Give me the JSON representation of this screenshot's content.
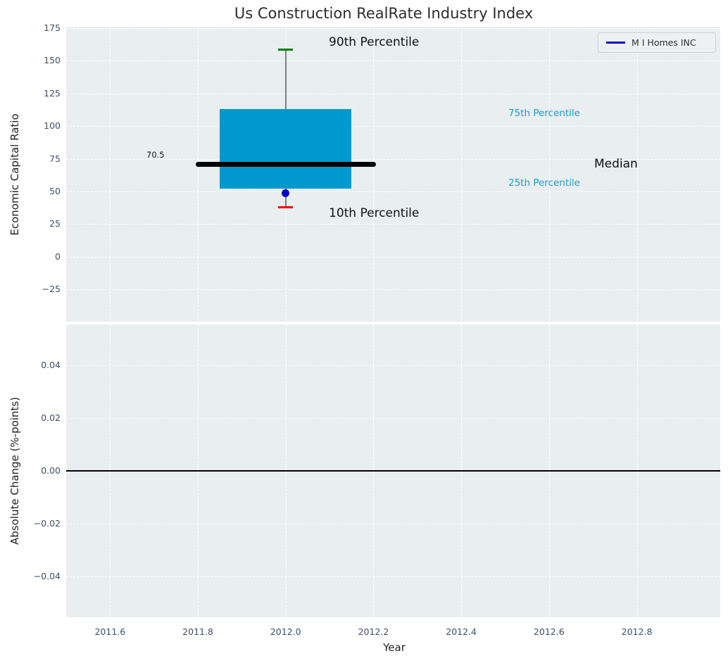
{
  "figure": {
    "title": "Us Construction RealRate Industry Index",
    "background": "#ffffff",
    "axes_background": "#e9eef0",
    "grid_color": "#ffffff",
    "tick_color": "#3e4f66"
  },
  "legend": {
    "label": "M I Homes INC",
    "line_color": "#0000cd"
  },
  "top_plot": {
    "ylabel": "Economic Capital Ratio",
    "annotations": {
      "p90": "90th Percentile",
      "p75": "75th Percentile",
      "median": "Median",
      "median_value_label": "70.5",
      "p25": "25th Percentile",
      "p10": "10th Percentile"
    }
  },
  "bottom_plot": {
    "ylabel": "Absolute Change (%-points)",
    "xlabel": "Year"
  },
  "chart_data": [
    {
      "type": "box",
      "title": "Us Construction RealRate Industry Index",
      "ylabel": "Economic Capital Ratio",
      "x": 2012.0,
      "box": {
        "p10": 38,
        "p25": 52,
        "median": 70.5,
        "p75": 113,
        "p90": 158.5
      },
      "box_x_range": [
        2011.85,
        2012.15
      ],
      "median_x_range": [
        2011.795,
        2012.205
      ],
      "cap_half_width": 0.017,
      "median_label": "70.5",
      "company_point": {
        "name": "M I Homes INC",
        "x": 2012.0,
        "y": 48.5,
        "color": "#0000cd"
      },
      "yticks": [
        175,
        150,
        125,
        100,
        75,
        50,
        25,
        0,
        -25
      ],
      "ytick_labels": [
        "175",
        "150",
        "125",
        "100",
        "75",
        "50",
        "25",
        "0",
        "−25"
      ],
      "ylim": [
        -49.6,
        176
      ],
      "grid": true,
      "legend": [
        "M I Homes INC"
      ],
      "legend_position": "upper right",
      "colors": {
        "box_fill": "#0099cd",
        "median_line": "#000000",
        "whisker": "#7f7f7f",
        "cap_top": "#008000",
        "cap_bottom": "#ff0000"
      }
    },
    {
      "type": "line",
      "ylabel": "Absolute Change (%-points)",
      "xlabel": "Year",
      "series": [],
      "zero_line": 0.0,
      "zero_line_color": "#000000",
      "yticks": [
        0.04,
        0.02,
        0.0,
        -0.02,
        -0.04
      ],
      "ytick_labels": [
        "0.04",
        "0.02",
        "0.00",
        "−0.02",
        "−0.04"
      ],
      "ylim": [
        -0.0555,
        0.0555
      ],
      "xticks": [
        2011.6,
        2011.8,
        2012.0,
        2012.2,
        2012.4,
        2012.6,
        2012.8
      ],
      "xtick_labels": [
        "2011.6",
        "2011.8",
        "2012.0",
        "2012.2",
        "2012.4",
        "2012.6",
        "2012.8"
      ],
      "xlim": [
        2011.5,
        2012.99
      ],
      "grid": true
    }
  ]
}
